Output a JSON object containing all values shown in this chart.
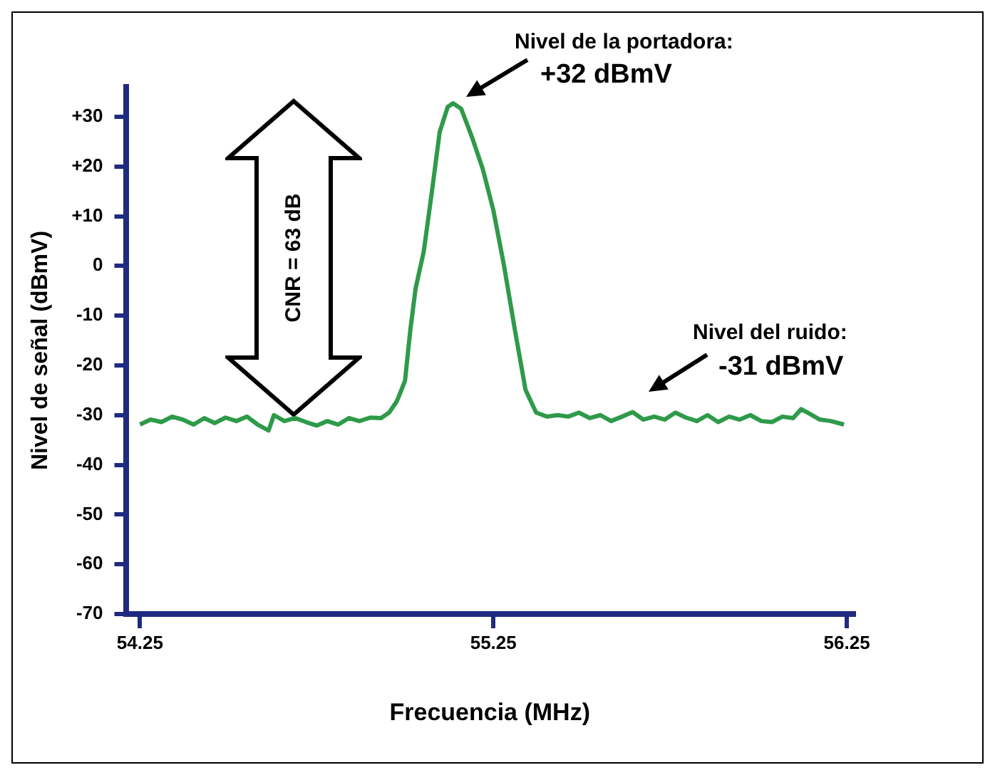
{
  "chart_data": {
    "type": "line",
    "xlabel": "Frecuencia (MHz)",
    "ylabel": "Nivel de señal (dBmV)",
    "xlim": [
      54.21,
      56.27
    ],
    "xticks": [
      54.25,
      55.25,
      56.25
    ],
    "ylim": [
      -70,
      36
    ],
    "yticks": [
      {
        "value": 30,
        "label": "+30"
      },
      {
        "value": 20,
        "label": "+20"
      },
      {
        "value": 10,
        "label": "+10"
      },
      0,
      -10,
      -20,
      -30,
      -40,
      -50,
      -60,
      -70
    ],
    "grid": false,
    "legend": false,
    "marker": "none",
    "line_style": "solid",
    "annotations": [
      "Nivel de la portadora:",
      "+32 dBmV",
      "Nivel del ruido:",
      "-31 dBmV",
      "CNR = 63 dB"
    ],
    "series": [
      {
        "color": "#2e9a4a",
        "x": [
          54.25,
          54.28,
          54.311,
          54.341,
          54.371,
          54.402,
          54.432,
          54.462,
          54.492,
          54.523,
          54.553,
          54.583,
          54.614,
          54.629,
          54.659,
          54.689,
          54.72,
          54.75,
          54.78,
          54.811,
          54.841,
          54.871,
          54.902,
          54.932,
          54.955,
          54.977,
          55.0,
          55.015,
          55.03,
          55.053,
          55.076,
          55.098,
          55.121,
          55.136,
          55.159,
          55.189,
          55.22,
          55.25,
          55.28,
          55.311,
          55.341,
          55.371,
          55.402,
          55.432,
          55.462,
          55.492,
          55.523,
          55.553,
          55.583,
          55.614,
          55.644,
          55.674,
          55.705,
          55.735,
          55.765,
          55.795,
          55.826,
          55.856,
          55.886,
          55.917,
          55.947,
          55.977,
          56.008,
          56.038,
          56.068,
          56.098,
          56.121,
          56.144,
          56.174,
          56.205,
          56.242
        ],
        "values": [
          -31.9,
          -30.9,
          -31.4,
          -30.3,
          -30.9,
          -31.9,
          -30.6,
          -31.6,
          -30.5,
          -31.2,
          -30.3,
          -31.9,
          -33.1,
          -30.0,
          -31.2,
          -30.6,
          -31.4,
          -32.1,
          -31.2,
          -31.9,
          -30.6,
          -31.2,
          -30.5,
          -30.6,
          -29.5,
          -27.2,
          -23.1,
          -12.9,
          -4.5,
          2.9,
          14.9,
          26.9,
          32.0,
          32.7,
          31.6,
          26.0,
          19.5,
          11.2,
          0.1,
          -12.9,
          -24.9,
          -29.5,
          -30.3,
          -30.0,
          -30.3,
          -29.5,
          -30.6,
          -30.0,
          -31.2,
          -30.3,
          -29.4,
          -30.9,
          -30.3,
          -30.9,
          -29.5,
          -30.5,
          -31.2,
          -30.0,
          -31.4,
          -30.3,
          -30.9,
          -30.0,
          -31.2,
          -31.4,
          -30.3,
          -30.6,
          -28.8,
          -29.7,
          -30.9,
          -31.2,
          -31.9
        ]
      }
    ]
  }
}
